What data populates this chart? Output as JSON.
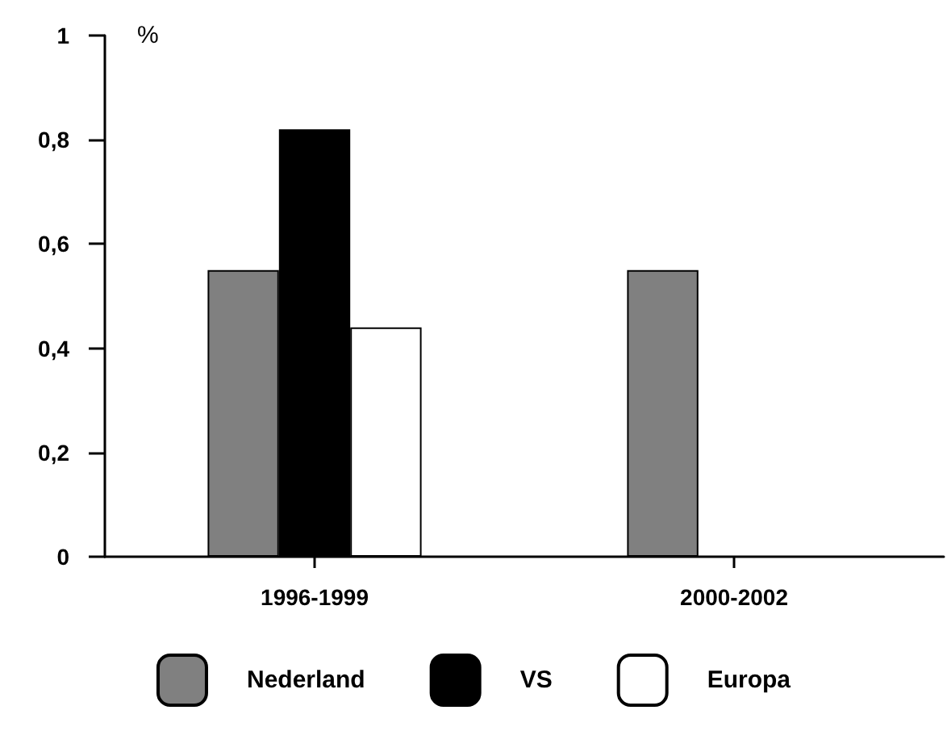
{
  "chart_data": {
    "type": "bar",
    "categories": [
      "1996-1999",
      "2000-2002"
    ],
    "series": [
      {
        "name": "Nederland",
        "color": "#808080",
        "values": [
          0.55,
          0.55
        ]
      },
      {
        "name": "VS",
        "color": "#000000",
        "values": [
          0.82,
          null
        ]
      },
      {
        "name": "Europa",
        "color": "#ffffff",
        "values": [
          0.44,
          null
        ]
      }
    ],
    "ylabel": "%",
    "ylim": [
      0,
      1
    ],
    "yticks": [
      0,
      {
        "value": 0.2,
        "label": "0,2"
      },
      {
        "value": 0.4,
        "label": "0,4"
      },
      {
        "value": 0.6,
        "label": "0,6"
      },
      {
        "value": 0.8,
        "label": "0,8"
      },
      1
    ],
    "grid": false,
    "legend": "bottom"
  }
}
